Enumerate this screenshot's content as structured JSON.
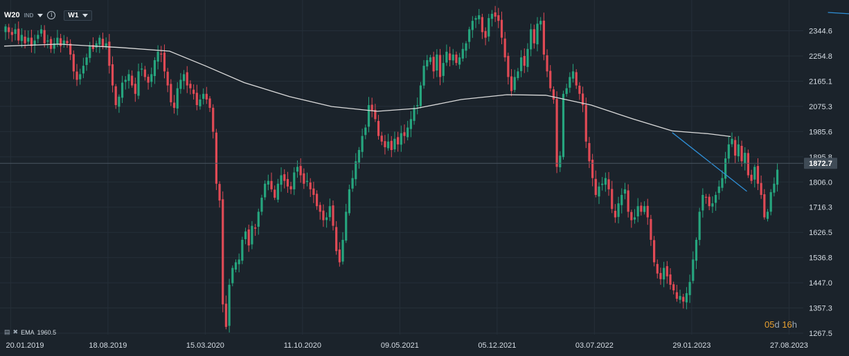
{
  "header": {
    "symbol": "W20",
    "type_badge": "IND",
    "timeframe": "W1"
  },
  "indicator": {
    "label": "EMA",
    "value": "1960.5"
  },
  "countdown": {
    "days_value": "05",
    "days_unit": "d",
    "hours_value": "16",
    "hours_unit": "h"
  },
  "colors": {
    "background": "#1b232b",
    "up": "#26a57e",
    "down": "#e04a55",
    "ema": "#dcdcdc",
    "trendline": "#2f8fd6",
    "price_label_bg": "#3f4b56"
  },
  "chart_data": {
    "type": "candlestick",
    "interval": "weekly",
    "y_axis": {
      "ticks": [
        "2344.6",
        "2254.8",
        "2165.1",
        "2075.3",
        "1985.6",
        "1895.8",
        "1806.0",
        "1716.3",
        "1626.5",
        "1536.8",
        "1447.0",
        "1357.3",
        "1267.5"
      ],
      "range": [
        1267.5,
        2410
      ]
    },
    "x_axis": {
      "ticks": [
        "20.01.2019",
        "18.08.2019",
        "15.03.2020",
        "11.10.2020",
        "09.05.2021",
        "05.12.2021",
        "03.07.2022",
        "29.01.2023",
        "27.08.2023"
      ]
    },
    "last_price": "1872.7",
    "ema_label": "EMA 1960.5",
    "ema_anchor_points": [
      {
        "date": "2019-01-06",
        "value": 2290
      },
      {
        "date": "2019-05-05",
        "value": 2297
      },
      {
        "date": "2019-09-15",
        "value": 2285
      },
      {
        "date": "2019-12-29",
        "value": 2272
      },
      {
        "date": "2020-03-15",
        "value": 2220
      },
      {
        "date": "2020-06-07",
        "value": 2160
      },
      {
        "date": "2020-09-13",
        "value": 2110
      },
      {
        "date": "2020-12-13",
        "value": 2075
      },
      {
        "date": "2021-03-21",
        "value": 2058
      },
      {
        "date": "2021-06-13",
        "value": 2068
      },
      {
        "date": "2021-09-19",
        "value": 2100
      },
      {
        "date": "2021-12-26",
        "value": 2117
      },
      {
        "date": "2022-03-20",
        "value": 2115
      },
      {
        "date": "2022-06-26",
        "value": 2080
      },
      {
        "date": "2022-09-25",
        "value": 2030
      },
      {
        "date": "2022-12-18",
        "value": 1988
      },
      {
        "date": "2023-03-05",
        "value": 1978
      },
      {
        "date": "2023-04-23",
        "value": 1968
      }
    ],
    "trendlines": [
      {
        "from": {
          "date": "2022-12-18",
          "value": 1982
        },
        "to": {
          "date": "2023-05-28",
          "value": 1773
        }
      },
      {
        "from": {
          "date": "2023-11-19",
          "value": 2410
        },
        "to": {
          "date": "2024-01-07",
          "value": 2405
        }
      }
    ],
    "candle_path": {
      "start_date": "2019-01-06",
      "closes": [
        2360,
        2340,
        2330,
        2350,
        2310,
        2330,
        2300,
        2320,
        2290,
        2310,
        2330,
        2350,
        2300,
        2310,
        2280,
        2300,
        2320,
        2290,
        2310,
        2300,
        2260,
        2200,
        2170,
        2190,
        2220,
        2250,
        2290,
        2280,
        2300,
        2320,
        2290,
        2300,
        2220,
        2150,
        2080,
        2110,
        2160,
        2170,
        2190,
        2150,
        2120,
        2200,
        2210,
        2180,
        2160,
        2190,
        2240,
        2270,
        2260,
        2200,
        2150,
        2090,
        2070,
        2140,
        2170,
        2190,
        2150,
        2140,
        2120,
        2080,
        2100,
        2120,
        2100,
        2070,
        1985,
        1800,
        1740,
        1370,
        1290,
        1440,
        1500,
        1520,
        1530,
        1600,
        1630,
        1580,
        1650,
        1640,
        1700,
        1750,
        1800,
        1810,
        1780,
        1750,
        1800,
        1830,
        1810,
        1790,
        1780,
        1840,
        1860,
        1830,
        1800,
        1810,
        1780,
        1760,
        1720,
        1700,
        1670,
        1680,
        1720,
        1650,
        1560,
        1520,
        1600,
        1700,
        1780,
        1820,
        1880,
        1920,
        1970,
        2000,
        2080,
        2060,
        2030,
        1970,
        1950,
        1930,
        1950,
        1920,
        1960,
        1940,
        1980,
        1970,
        2000,
        2030,
        2070,
        2080,
        2150,
        2220,
        2240,
        2250,
        2200,
        2260,
        2180,
        2230,
        2270,
        2240,
        2260,
        2230,
        2250,
        2280,
        2300,
        2350,
        2380,
        2390,
        2400,
        2340,
        2320,
        2390,
        2405,
        2395,
        2380,
        2320,
        2250,
        2180,
        2130,
        2180,
        2200,
        2250,
        2220,
        2280,
        2350,
        2300,
        2370,
        2380,
        2260,
        2200,
        2140,
        2100,
        1860,
        1900,
        2120,
        2140,
        2180,
        2200,
        2150,
        2120,
        2080,
        1950,
        1880,
        1820,
        1760,
        1790,
        1800,
        1820,
        1780,
        1710,
        1680,
        1730,
        1760,
        1780,
        1700,
        1670,
        1680,
        1720,
        1700,
        1720,
        1680,
        1600,
        1520,
        1480,
        1460,
        1500,
        1470,
        1440,
        1420,
        1390,
        1400,
        1380,
        1410,
        1450,
        1530,
        1600,
        1700,
        1760,
        1750,
        1720,
        1730,
        1760,
        1790,
        1820,
        1890,
        1940,
        1960,
        1900,
        1940,
        1880,
        1910,
        1830,
        1810,
        1860,
        1800,
        1760,
        1680,
        1700,
        1770,
        1800,
        1850
      ]
    }
  }
}
